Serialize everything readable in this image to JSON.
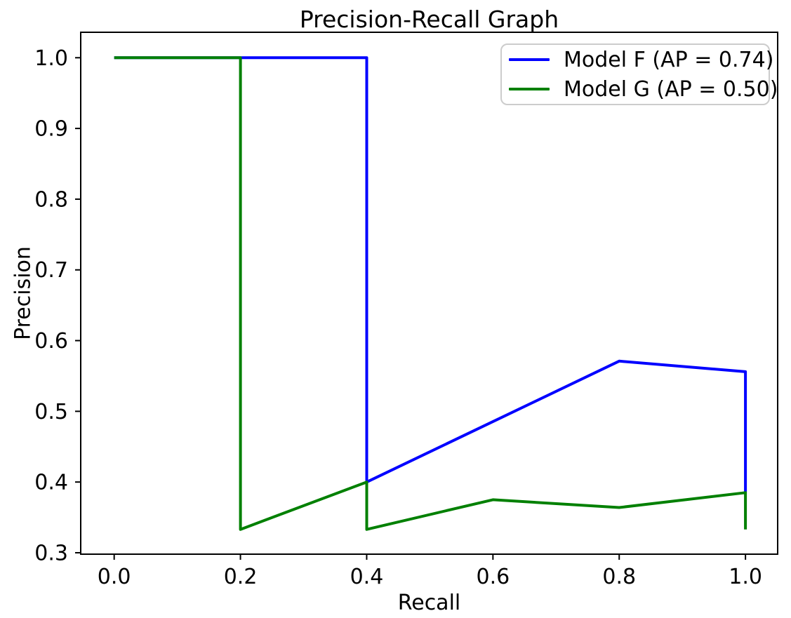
{
  "figure": {
    "background": "#ffffff",
    "text_color": "#000000"
  },
  "chart_data": {
    "type": "line",
    "title": "Precision-Recall Graph",
    "xlabel": "Recall",
    "ylabel": "Precision",
    "xlim": [
      -0.053,
      1.051
    ],
    "ylim": [
      0.298,
      1.036
    ],
    "x_ticks": [
      0.0,
      0.2,
      0.4,
      0.6,
      0.8,
      1.0
    ],
    "x_tick_labels": [
      "0.0",
      "0.2",
      "0.4",
      "0.6",
      "0.8",
      "1.0"
    ],
    "y_ticks": [
      0.3,
      0.4,
      0.5,
      0.6,
      0.7,
      0.8,
      0.9,
      1.0
    ],
    "y_tick_labels": [
      "0.3",
      "0.4",
      "0.5",
      "0.6",
      "0.7",
      "0.8",
      "0.9",
      "1.0"
    ],
    "grid": false,
    "legend_position": "upper right",
    "series": [
      {
        "name": "Model F (AP = 0.74)",
        "color": "#0000ff",
        "points": [
          [
            0.0,
            1.0
          ],
          [
            0.4,
            1.0
          ],
          [
            0.4,
            0.4
          ],
          [
            0.8,
            0.571
          ],
          [
            1.0,
            0.556
          ],
          [
            1.0,
            0.385
          ]
        ]
      },
      {
        "name": "Model G (AP = 0.50)",
        "color": "#008000",
        "points": [
          [
            0.0,
            1.0
          ],
          [
            0.2,
            1.0
          ],
          [
            0.2,
            0.333
          ],
          [
            0.4,
            0.4
          ],
          [
            0.4,
            0.333
          ],
          [
            0.6,
            0.375
          ],
          [
            0.8,
            0.364
          ],
          [
            1.0,
            0.385
          ],
          [
            1.0,
            0.333
          ]
        ]
      }
    ]
  }
}
